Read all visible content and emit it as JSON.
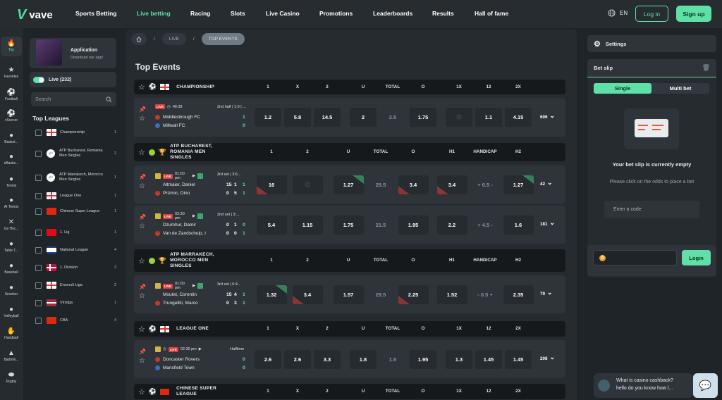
{
  "header": {
    "logo_text": "vave",
    "nav": [
      "Sports Betting",
      "Live betting",
      "Racing",
      "Slots",
      "Live Casino",
      "Promotions",
      "Leaderboards",
      "Results",
      "Hall of fame"
    ],
    "active_nav": "Live betting",
    "lang": "EN",
    "login": "Log in",
    "signup": "Sign up"
  },
  "rail": [
    {
      "label": "Top",
      "icon": "fire-icon",
      "glyph": "🔥"
    },
    {
      "label": "Favorites",
      "icon": "star-icon",
      "glyph": "★"
    },
    {
      "label": "Football",
      "icon": "football-icon",
      "glyph": "⚽"
    },
    {
      "label": "vSoccer",
      "icon": "vsoccer-icon",
      "glyph": "⚽"
    },
    {
      "label": "Basket...",
      "icon": "basketball-icon",
      "glyph": "●"
    },
    {
      "label": "eBaske...",
      "icon": "ebasketball-icon",
      "glyph": "●"
    },
    {
      "label": "Tennis",
      "icon": "tennis-icon",
      "glyph": "●"
    },
    {
      "label": "AI Tennis",
      "icon": "ai-tennis-icon",
      "glyph": "●"
    },
    {
      "label": "Ice Hoc...",
      "icon": "ice-hockey-icon",
      "glyph": "✕"
    },
    {
      "label": "Table T...",
      "icon": "table-tennis-icon",
      "glyph": "●"
    },
    {
      "label": "Baseball",
      "icon": "baseball-icon",
      "glyph": "●"
    },
    {
      "label": "Snooker",
      "icon": "snooker-icon",
      "glyph": "●"
    },
    {
      "label": "Volleyball",
      "icon": "volleyball-icon",
      "glyph": "●"
    },
    {
      "label": "Handball",
      "icon": "handball-icon",
      "glyph": "✋"
    },
    {
      "label": "Badmin...",
      "icon": "badminton-icon",
      "glyph": "▲"
    },
    {
      "label": "Rugby",
      "icon": "rugby-icon",
      "glyph": "⬬"
    }
  ],
  "left": {
    "app_title": "Application",
    "app_sub": "Download our app!",
    "live_label": "Live (232)",
    "search_placeholder": "Search",
    "top_leagues_title": "Top Leagues",
    "leagues": [
      {
        "name": "Championship",
        "count": "1",
        "flag": "england"
      },
      {
        "name": "ATP Bucharest, Romania Men Singles",
        "count": "2",
        "flag": "atp"
      },
      {
        "name": "ATP Marrakech, Morocco Men Singles",
        "count": "1",
        "flag": "atp"
      },
      {
        "name": "League One",
        "count": "1",
        "flag": "england"
      },
      {
        "name": "Chinese Super League",
        "count": "1",
        "flag": "china"
      },
      {
        "name": "1. Lig",
        "count": "1",
        "flag": "turkey"
      },
      {
        "name": "National League",
        "count": "4",
        "flag": "israel"
      },
      {
        "name": "1. Division",
        "count": "2",
        "flag": "denmark"
      },
      {
        "name": "Erovnuli Liga",
        "count": "2",
        "flag": "georgia"
      },
      {
        "name": "Virsliga",
        "count": "1",
        "flag": "latvia"
      },
      {
        "name": "CBA",
        "count": "4",
        "flag": "china"
      }
    ]
  },
  "main": {
    "breadcrumb": [
      "LIVE",
      "TOP EVENTS"
    ],
    "title": "Top Events",
    "sections": [
      {
        "name": "CHAMPIONSHIP",
        "cols": [
          "1",
          "X",
          "2",
          "U",
          "TOTAL",
          "O",
          "1X",
          "12",
          "2X"
        ]
      },
      {
        "name": "ATP BUCHAREST, ROMANIA MEN SINGLES",
        "cols": [
          "1",
          "2",
          "U",
          "TOTAL",
          "O",
          "H1",
          "HANDICAP",
          "H2"
        ]
      },
      {
        "name": "ATP MARRAKECH, MOROCCO MEN SINGLES",
        "cols": [
          "1",
          "2",
          "U",
          "TOTAL",
          "O",
          "H1",
          "HANDICAP",
          "H2"
        ]
      },
      {
        "name": "LEAGUE ONE",
        "cols": [
          "1",
          "X",
          "2",
          "U",
          "TOTAL",
          "O",
          "1X",
          "12",
          "2X"
        ]
      },
      {
        "name": "CHINESE SUPER LEAGUE",
        "cols": [
          "1",
          "X",
          "2",
          "U",
          "TOTAL",
          "O",
          "1X",
          "12",
          "2X"
        ]
      }
    ],
    "events": [
      {
        "time": "46:39",
        "info": "2nd half | 1:0 | ...",
        "home": "Middlesbrough FC",
        "away": "Millwall FC",
        "home_score": [
          "1"
        ],
        "away_score": [
          "0"
        ],
        "odds": [
          "1.2",
          "5.8",
          "14.5",
          "2",
          "2.5",
          "1.75",
          "",
          "1.1",
          "4.15"
        ],
        "more": "606"
      },
      {
        "time": "01:00 pm",
        "info": "3rd set | 3:6...",
        "home": "Altmaier, Daniel",
        "away": "Prizmic, Dino",
        "home_score": [
          "15",
          "1",
          "1"
        ],
        "away_score": [
          "0",
          "5",
          "1"
        ],
        "odds": [
          "16",
          "",
          "1.27",
          "29.5",
          "3.4",
          "3.4",
          "+ 6.5 -",
          "1.27"
        ],
        "more": "42"
      },
      {
        "time": "02:30 pm",
        "info": "2nd set | 3:...",
        "home": "Dzumhur, Damir",
        "away": "Van de Zandschulp, I",
        "home_score": [
          "0",
          "1",
          "0"
        ],
        "away_score": [
          "0",
          "0",
          "1"
        ],
        "odds": [
          "5.4",
          "1.15",
          "1.75",
          "21.5",
          "1.95",
          "2.2",
          "+ 4.5 -",
          "1.6"
        ],
        "more": "181"
      },
      {
        "time": "01:00 pm",
        "info": "3rd set | 6:4...",
        "home": "Moutet, Corentin",
        "away": "Trungelliti, Marco",
        "home_score": [
          "15",
          "4",
          "1"
        ],
        "away_score": [
          "0",
          "3",
          "1"
        ],
        "odds": [
          "1.32",
          "3.4",
          "1.57",
          "29.5",
          "2.25",
          "1.52",
          "- 0.5 +",
          "2.35"
        ],
        "more": "79"
      },
      {
        "time": "02:30 pm",
        "info": "Halftime",
        "home": "Doncaster Rovers",
        "away": "Mansfield Town",
        "home_score": [
          "0"
        ],
        "away_score": [
          "0"
        ],
        "odds": [
          "2.6",
          "2.6",
          "3.3",
          "1.8",
          "1.5",
          "1.95",
          "1.3",
          "1.45",
          "1.45"
        ],
        "more": "208"
      }
    ]
  },
  "right": {
    "settings": "Settings",
    "betslip": "Bet slip",
    "tab_single": "Single",
    "tab_multi": "Multi bet",
    "empty_title": "Your bet slip is currently empty",
    "empty_sub": "Please click on the odds to place a bet",
    "code_placeholder": "Enter a code",
    "login": "Login"
  },
  "chat": {
    "line1": "What is casino cashback?",
    "line2": "hello do you know how l..."
  },
  "colors": {
    "accent": "#5fe0a7",
    "bg": "#1f2429",
    "panel": "#262b30",
    "live": "#e23b3b"
  }
}
